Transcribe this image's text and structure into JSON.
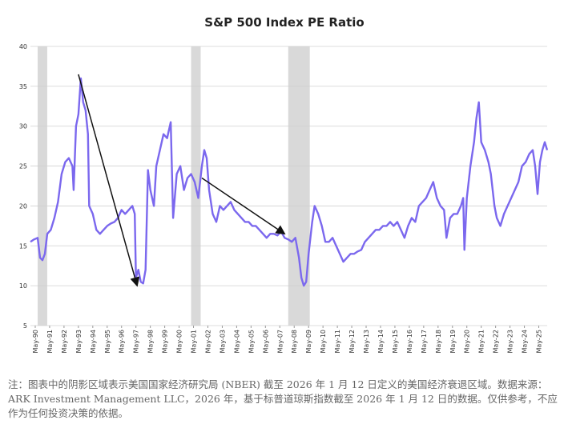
{
  "chart_data": {
    "type": "line",
    "title": "S&P 500 Index PE Ratio",
    "x": [
      "1990-01",
      "1990-04",
      "1990-07",
      "1990-09",
      "1990-11",
      "1991-01",
      "1991-03",
      "1991-06",
      "1991-09",
      "1991-12",
      "1992-03",
      "1992-06",
      "1992-09",
      "1992-12",
      "1993-01",
      "1993-03",
      "1993-05",
      "1993-07",
      "1993-09",
      "1993-11",
      "1994-01",
      "1994-02",
      "1994-05",
      "1994-08",
      "1994-11",
      "1995-02",
      "1995-05",
      "1995-08",
      "1995-11",
      "1996-02",
      "1996-05",
      "1996-08",
      "1996-11",
      "1997-02",
      "1997-04",
      "1997-05",
      "1997-07",
      "1997-09",
      "1997-11",
      "1998-01",
      "1998-03",
      "1998-05",
      "1998-08",
      "1998-10",
      "1999-01",
      "1999-04",
      "1999-07",
      "1999-10",
      "1999-12",
      "2000-03",
      "2000-06",
      "2000-09",
      "2000-12",
      "2001-03",
      "2001-06",
      "2001-09",
      "2001-12",
      "2002-02",
      "2002-04",
      "2002-06",
      "2002-09",
      "2002-12",
      "2003-03",
      "2003-06",
      "2003-09",
      "2003-12",
      "2004-03",
      "2004-06",
      "2004-09",
      "2004-12",
      "2005-03",
      "2005-06",
      "2005-09",
      "2005-12",
      "2006-03",
      "2006-06",
      "2006-09",
      "2006-12",
      "2007-03",
      "2007-06",
      "2007-09",
      "2007-12",
      "2008-03",
      "2008-06",
      "2008-09",
      "2008-11",
      "2009-01",
      "2009-03",
      "2009-05",
      "2009-08",
      "2009-10",
      "2010-01",
      "2010-04",
      "2010-07",
      "2010-10",
      "2011-01",
      "2011-04",
      "2011-07",
      "2011-10",
      "2012-01",
      "2012-04",
      "2012-07",
      "2012-10",
      "2013-01",
      "2013-04",
      "2013-07",
      "2013-10",
      "2014-01",
      "2014-04",
      "2014-07",
      "2014-10",
      "2015-01",
      "2015-04",
      "2015-07",
      "2015-10",
      "2016-01",
      "2016-04",
      "2016-07",
      "2016-10",
      "2017-01",
      "2017-04",
      "2017-07",
      "2017-10",
      "2018-01",
      "2018-04",
      "2018-07",
      "2018-10",
      "2018-12",
      "2019-03",
      "2019-06",
      "2019-09",
      "2019-12",
      "2020-02",
      "2020-03",
      "2020-05",
      "2020-08",
      "2020-11",
      "2021-01",
      "2021-03",
      "2021-05",
      "2021-08",
      "2021-11",
      "2022-01",
      "2022-04",
      "2022-06",
      "2022-09",
      "2022-12",
      "2023-03",
      "2023-06",
      "2023-09",
      "2023-12",
      "2024-03",
      "2024-06",
      "2024-09",
      "2024-12",
      "2025-02",
      "2025-04",
      "2025-06",
      "2025-08",
      "2025-10",
      "2025-12"
    ],
    "values": [
      15.5,
      15.8,
      16,
      13.5,
      13.2,
      14,
      16.5,
      17,
      18.5,
      20.5,
      24,
      25.5,
      26,
      25,
      22,
      30,
      31.5,
      36,
      33,
      32,
      29,
      20,
      19,
      17,
      16.5,
      17,
      17.5,
      17.8,
      18,
      18.5,
      19.5,
      19,
      19.5,
      20,
      19,
      11,
      12,
      10.5,
      10.3,
      12,
      24.5,
      22,
      20,
      25,
      27,
      29,
      28.5,
      30.5,
      18.5,
      24,
      25,
      22,
      23.5,
      24,
      23,
      21,
      25,
      27,
      26,
      22,
      19,
      18,
      20,
      19.5,
      20,
      20.5,
      19.5,
      19,
      18.5,
      18,
      18,
      17.5,
      17.5,
      17,
      16.5,
      16,
      16.5,
      16.5,
      16.3,
      16.8,
      16,
      15.8,
      15.5,
      16,
      13.5,
      11,
      10,
      10.5,
      14,
      18,
      20,
      19,
      17.5,
      15.5,
      15.5,
      16,
      15,
      14,
      13,
      13.5,
      14,
      14,
      14.3,
      14.5,
      15.5,
      16,
      16.5,
      17,
      17,
      17.5,
      17.5,
      18,
      17.5,
      18,
      17,
      16,
      17.5,
      18.5,
      18,
      20,
      20.5,
      21,
      22,
      23,
      21,
      20,
      19.5,
      16,
      18.5,
      19,
      19,
      20,
      21,
      14.5,
      21,
      25,
      28,
      31,
      33,
      28,
      27,
      25.5,
      24,
      20,
      18.5,
      17.5,
      19,
      20,
      21,
      22,
      23,
      25,
      25.5,
      26.5,
      27,
      25,
      21.5,
      25.5,
      27,
      28,
      27
    ],
    "color": "#7b68ee",
    "xlim": [
      "1990-01",
      "2025-12"
    ],
    "ylim": [
      5,
      40
    ],
    "yticks": [
      5,
      10,
      15,
      20,
      25,
      30,
      35,
      40
    ],
    "grid": true,
    "xticks": [
      {
        "value": "1990-05",
        "label": "May-90"
      },
      {
        "value": "1991-05",
        "label": "May-91"
      },
      {
        "value": "1992-05",
        "label": "May-92"
      },
      {
        "value": "1993-05",
        "label": "May-93"
      },
      {
        "value": "1994-05",
        "label": "May-94"
      },
      {
        "value": "1995-05",
        "label": "May-95"
      },
      {
        "value": "1996-05",
        "label": "May-96"
      },
      {
        "value": "1997-05",
        "label": "May-97"
      },
      {
        "value": "1998-05",
        "label": "May-98"
      },
      {
        "value": "1999-05",
        "label": "May-99"
      },
      {
        "value": "2000-05",
        "label": "May-00"
      },
      {
        "value": "2001-05",
        "label": "May-01"
      },
      {
        "value": "2002-05",
        "label": "May-02"
      },
      {
        "value": "2003-05",
        "label": "May-03"
      },
      {
        "value": "2004-05",
        "label": "May-04"
      },
      {
        "value": "2005-05",
        "label": "May-05"
      },
      {
        "value": "2006-05",
        "label": "May-06"
      },
      {
        "value": "2007-05",
        "label": "May-07"
      },
      {
        "value": "2008-05",
        "label": "May-08"
      },
      {
        "value": "2009-05",
        "label": "May-09"
      },
      {
        "value": "2010-05",
        "label": "May-10"
      },
      {
        "value": "2011-05",
        "label": "May-11"
      },
      {
        "value": "2012-05",
        "label": "May-12"
      },
      {
        "value": "2013-05",
        "label": "May-13"
      },
      {
        "value": "2014-05",
        "label": "May-14"
      },
      {
        "value": "2015-05",
        "label": "May-15"
      },
      {
        "value": "2016-05",
        "label": "May-16"
      },
      {
        "value": "2017-05",
        "label": "May-17"
      },
      {
        "value": "2018-05",
        "label": "May-18"
      },
      {
        "value": "2019-05",
        "label": "May-19"
      },
      {
        "value": "2020-05",
        "label": "May-20"
      },
      {
        "value": "2021-05",
        "label": "May-21"
      },
      {
        "value": "2022-05",
        "label": "May-22"
      },
      {
        "value": "2023-05",
        "label": "May-23"
      },
      {
        "value": "2024-05",
        "label": "May-24"
      },
      {
        "value": "2025-05",
        "label": "May-25"
      }
    ],
    "recessions": [
      {
        "start": "1990-07",
        "end": "1991-03"
      },
      {
        "start": "2001-03",
        "end": "2001-11"
      },
      {
        "start": "2007-12",
        "end": "2009-06"
      }
    ],
    "arrows": [
      {
        "x": [
          "1993-05",
          "1997-06"
        ],
        "y": [
          36.5,
          10
        ]
      },
      {
        "x": [
          "2001-12",
          "2007-09"
        ],
        "y": [
          23.5,
          16.5
        ]
      }
    ],
    "note": "注：图表中的阴影区域表示美国国家经济研究局 (NBER) 截至 2026 年 1 月 12 日定义的美国经济衰退区域。数据来源：ARK Investment Management LLC，2026 年，基于标普道琼斯指数截至 2026 年 1 月 12 日的数据。仅供参考，不应作为任何投资决策的依据。"
  }
}
